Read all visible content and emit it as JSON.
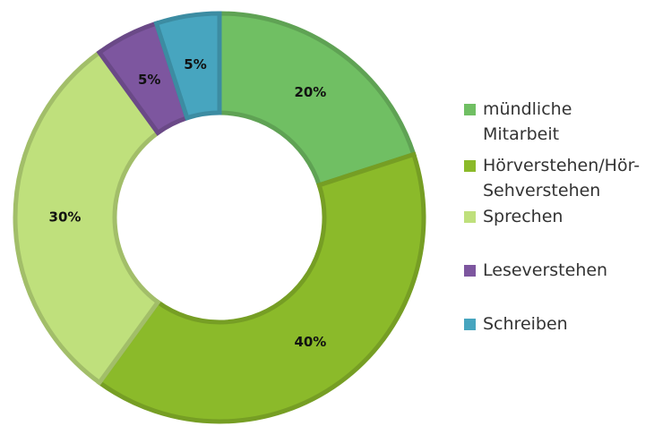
{
  "chart_data": {
    "type": "donut",
    "categories": [
      "mündliche Mitarbeit",
      "Hörverstehen/Hör-Sehverstehen",
      "Sprechen",
      "Leseverstehen",
      "Schreiben"
    ],
    "values": [
      20,
      40,
      30,
      5,
      5
    ],
    "value_labels": [
      "20%",
      "40%",
      "30%",
      "5%",
      "5%"
    ],
    "colors": [
      "#70bf63",
      "#8bba2a",
      "#bfe07c",
      "#7d569f",
      "#47a5bf"
    ],
    "legend": "right"
  }
}
